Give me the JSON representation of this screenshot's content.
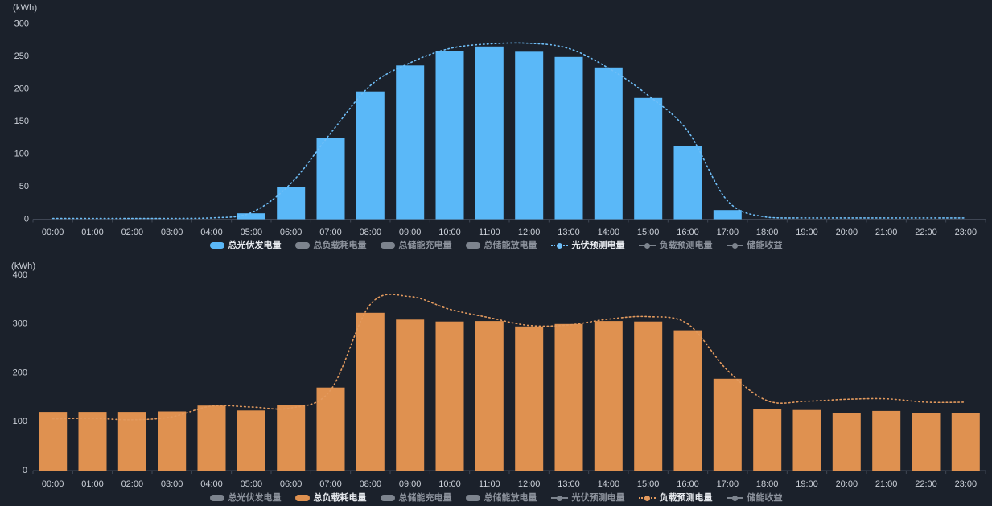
{
  "page": {
    "background": "#1b212b"
  },
  "colors": {
    "background": "#1b212b",
    "axis_text": "#cbd0d8",
    "axis_line": "#3f4654",
    "pv_blue": "#5ab8f8",
    "pv_forecast_blue": "#6fbef7",
    "load_orange": "#df9150",
    "load_forecast_orange": "#e39a5e",
    "inactive_gray": "#7d848e",
    "legend_text_active": "#e6e9ee",
    "legend_text_inactive": "#8b919b"
  },
  "chart_data": [
    {
      "type": "bar",
      "title": "",
      "unit_label": "(kWh)",
      "ylim": [
        0,
        300
      ],
      "yticks": [
        0,
        50,
        100,
        150,
        200,
        250,
        300
      ],
      "grid": false,
      "legend_position": "bottom",
      "categories": [
        "00:00",
        "01:00",
        "02:00",
        "03:00",
        "04:00",
        "05:00",
        "06:00",
        "07:00",
        "08:00",
        "09:00",
        "10:00",
        "11:00",
        "12:00",
        "13:00",
        "14:00",
        "15:00",
        "16:00",
        "17:00",
        "18:00",
        "19:00",
        "20:00",
        "21:00",
        "22:00",
        "23:00"
      ],
      "series": [
        {
          "name": "总光伏发电量",
          "type": "bar",
          "color": "#5ab8f8",
          "values": [
            0,
            0,
            0,
            0,
            0,
            9,
            50,
            125,
            196,
            236,
            258,
            265,
            257,
            249,
            233,
            186,
            113,
            14,
            0,
            0,
            0,
            0,
            0,
            0
          ]
        },
        {
          "name": "光伏预测电量",
          "type": "line",
          "style": "dotted",
          "color": "#6fbef7",
          "values": [
            1,
            1,
            1,
            1,
            2,
            10,
            55,
            132,
            205,
            240,
            262,
            269,
            270,
            262,
            232,
            190,
            135,
            28,
            3,
            2,
            2,
            2,
            2,
            2
          ]
        }
      ],
      "legend": [
        {
          "label": "总光伏发电量",
          "icon": "bar",
          "active": true,
          "color": "#5ab8f8"
        },
        {
          "label": "总负载耗电量",
          "icon": "bar",
          "active": false
        },
        {
          "label": "总储能充电量",
          "icon": "bar",
          "active": false
        },
        {
          "label": "总储能放电量",
          "icon": "bar",
          "active": false
        },
        {
          "label": "光伏预测电量",
          "icon": "line",
          "active": true,
          "color": "#6fbef7",
          "dotted": true
        },
        {
          "label": "负载预测电量",
          "icon": "line",
          "active": false
        },
        {
          "label": "储能收益",
          "icon": "line",
          "active": false
        }
      ]
    },
    {
      "type": "bar",
      "title": "",
      "unit_label": "(kWh)",
      "ylim": [
        0,
        400
      ],
      "yticks": [
        0,
        100,
        200,
        300,
        400
      ],
      "grid": false,
      "legend_position": "bottom",
      "categories": [
        "00:00",
        "01:00",
        "02:00",
        "03:00",
        "04:00",
        "05:00",
        "06:00",
        "07:00",
        "08:00",
        "09:00",
        "10:00",
        "11:00",
        "12:00",
        "13:00",
        "14:00",
        "15:00",
        "16:00",
        "17:00",
        "18:00",
        "19:00",
        "20:00",
        "21:00",
        "22:00",
        "23:00"
      ],
      "series": [
        {
          "name": "总负载耗电量",
          "type": "bar",
          "color": "#df9150",
          "values": [
            120,
            120,
            120,
            121,
            133,
            123,
            135,
            170,
            323,
            309,
            305,
            306,
            295,
            300,
            306,
            305,
            287,
            188,
            126,
            124,
            118,
            122,
            117,
            118
          ]
        },
        {
          "name": "负载预测电量",
          "type": "line",
          "style": "dotted",
          "color": "#e39a5e",
          "values": [
            106,
            107,
            104,
            110,
            132,
            130,
            128,
            165,
            340,
            356,
            330,
            313,
            297,
            298,
            310,
            315,
            300,
            205,
            143,
            142,
            146,
            147,
            140,
            140
          ]
        }
      ],
      "legend": [
        {
          "label": "总光伏发电量",
          "icon": "bar",
          "active": false
        },
        {
          "label": "总负载耗电量",
          "icon": "bar",
          "active": true,
          "color": "#df9150"
        },
        {
          "label": "总储能充电量",
          "icon": "bar",
          "active": false
        },
        {
          "label": "总储能放电量",
          "icon": "bar",
          "active": false
        },
        {
          "label": "光伏预测电量",
          "icon": "line",
          "active": false
        },
        {
          "label": "负载预测电量",
          "icon": "line",
          "active": true,
          "color": "#e39a5e",
          "dotted": true
        },
        {
          "label": "储能收益",
          "icon": "line",
          "active": false
        }
      ]
    }
  ]
}
